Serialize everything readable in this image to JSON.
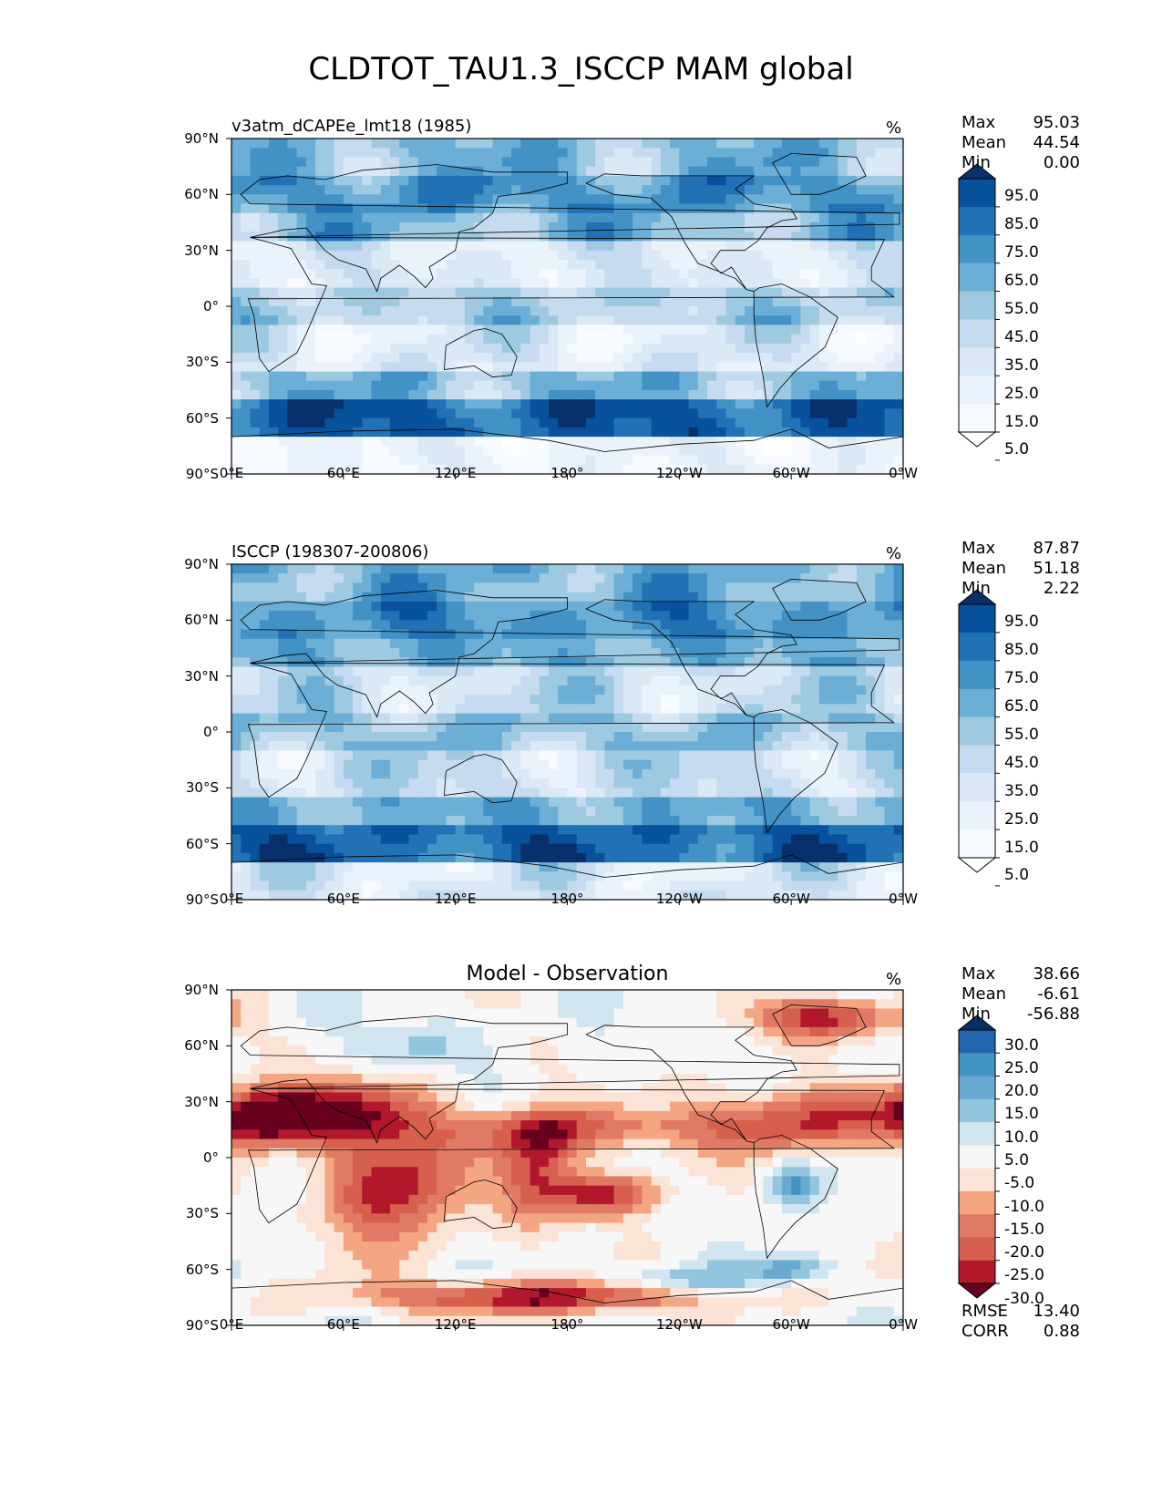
{
  "title": "CLDTOT_TAU1.3_ISCCP MAM global",
  "chart_data": [
    {
      "type": "heatmap",
      "name": "test",
      "title_left": "v3atm_dCAPEe_lmt18 (1985)",
      "units": "%",
      "stats": [
        {
          "label": "Max",
          "value": "95.03"
        },
        {
          "label": "Mean",
          "value": "44.54"
        },
        {
          "label": "Min",
          "value": "0.00"
        }
      ],
      "colorbar_levels": [
        "95.0",
        "85.0",
        "75.0",
        "65.0",
        "55.0",
        "45.0",
        "35.0",
        "25.0",
        "15.0",
        "5.0"
      ],
      "colorbar_colors": [
        "#08306b",
        "#08519c",
        "#2171b5",
        "#4292c6",
        "#6baed6",
        "#9ecae1",
        "#c6dbef",
        "#dbe9f6",
        "#eaf2fb",
        "#f7fbff",
        "#ffffff"
      ]
    },
    {
      "type": "heatmap",
      "name": "reference",
      "title_left": "ISCCP (198307-200806)",
      "units": "%",
      "stats": [
        {
          "label": "Max",
          "value": "87.87"
        },
        {
          "label": "Mean",
          "value": "51.18"
        },
        {
          "label": "Min",
          "value": "2.22"
        }
      ],
      "colorbar_levels": [
        "95.0",
        "85.0",
        "75.0",
        "65.0",
        "55.0",
        "45.0",
        "35.0",
        "25.0",
        "15.0",
        "5.0"
      ],
      "colorbar_colors": [
        "#08306b",
        "#08519c",
        "#2171b5",
        "#4292c6",
        "#6baed6",
        "#9ecae1",
        "#c6dbef",
        "#dbe9f6",
        "#eaf2fb",
        "#f7fbff",
        "#ffffff"
      ]
    },
    {
      "type": "heatmap",
      "name": "difference",
      "title_center": "Model - Observation",
      "units": "%",
      "stats": [
        {
          "label": "Max",
          "value": "38.66"
        },
        {
          "label": "Mean",
          "value": "-6.61"
        },
        {
          "label": "Min",
          "value": "-56.88"
        }
      ],
      "colorbar_levels": [
        "30.0",
        "25.0",
        "20.0",
        "15.0",
        "10.0",
        "5.0",
        "-5.0",
        "-10.0",
        "-15.0",
        "-20.0",
        "-25.0",
        "-30.0"
      ],
      "colorbar_colors": [
        "#053061",
        "#2166ac",
        "#4393c3",
        "#6aa9d0",
        "#92c5de",
        "#d1e5f0",
        "#f7f7f7",
        "#fbe3d6",
        "#f4a582",
        "#e07a64",
        "#d6604d",
        "#b2182b",
        "#67001f"
      ],
      "extra_stats": [
        {
          "label": "RMSE",
          "value": "13.40"
        },
        {
          "label": "CORR",
          "value": "0.88"
        }
      ]
    }
  ],
  "axes": {
    "lat_ticks": [
      "90°N",
      "60°N",
      "30°N",
      "0°",
      "30°S",
      "60°S",
      "90°S"
    ],
    "lon_ticks": [
      "0°E",
      "60°E",
      "120°E",
      "180°",
      "120°W",
      "60°W",
      "0°W"
    ],
    "xlim": [
      0,
      360
    ],
    "ylim": [
      -90,
      90
    ]
  }
}
